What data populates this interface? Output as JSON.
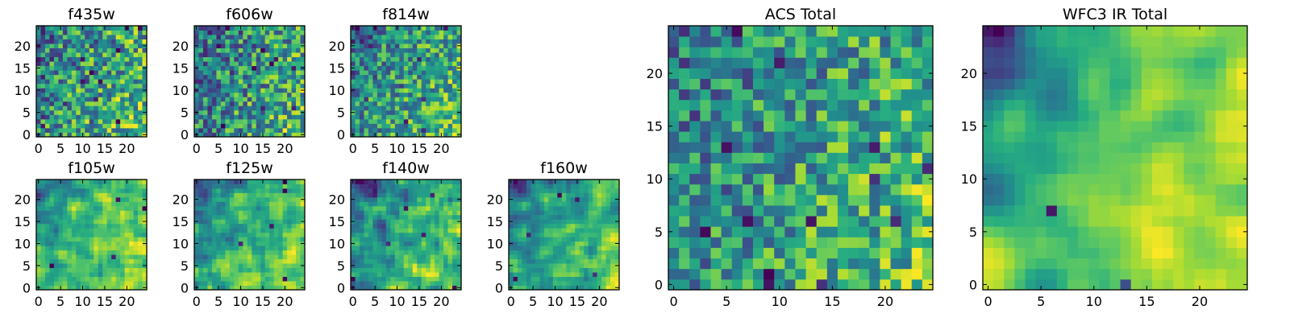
{
  "chart_data": [
    {
      "type": "heatmap",
      "title": "f435w",
      "x_ticks": [
        "0",
        "5",
        "10",
        "15",
        "20"
      ],
      "y_ticks": [
        "0",
        "5",
        "10",
        "15",
        "20"
      ],
      "grid": false,
      "legend": "none",
      "xlim": [
        -0.5,
        24.5
      ],
      "ylim": [
        -0.5,
        24.5
      ],
      "size": 25,
      "colormap": "viridis",
      "values_note": "noisy, mean ~0.75 normalized"
    },
    {
      "type": "heatmap",
      "title": "f606w",
      "x_ticks": [
        "0",
        "5",
        "10",
        "15",
        "20"
      ],
      "y_ticks": [
        "0",
        "5",
        "10",
        "15",
        "20"
      ],
      "grid": false,
      "legend": "none",
      "xlim": [
        -0.5,
        24.5
      ],
      "ylim": [
        -0.5,
        24.5
      ],
      "size": 25,
      "colormap": "viridis"
    },
    {
      "type": "heatmap",
      "title": "f814w",
      "x_ticks": [
        "0",
        "5",
        "10",
        "15",
        "20"
      ],
      "y_ticks": [
        "0",
        "5",
        "10",
        "15",
        "20"
      ],
      "grid": false,
      "legend": "none",
      "xlim": [
        -0.5,
        24.5
      ],
      "ylim": [
        -0.5,
        24.5
      ],
      "size": 25,
      "colormap": "viridis"
    },
    {
      "type": "heatmap",
      "title": "f105w",
      "x_ticks": [
        "0",
        "5",
        "10",
        "15",
        "20"
      ],
      "y_ticks": [
        "0",
        "5",
        "10",
        "15",
        "20"
      ],
      "grid": false,
      "legend": "none",
      "xlim": [
        -0.5,
        24.5
      ],
      "ylim": [
        -0.5,
        24.5
      ],
      "size": 25,
      "colormap": "viridis"
    },
    {
      "type": "heatmap",
      "title": "f125w",
      "x_ticks": [
        "0",
        "5",
        "10",
        "15",
        "20"
      ],
      "y_ticks": [
        "0",
        "5",
        "10",
        "15",
        "20"
      ],
      "grid": false,
      "legend": "none",
      "xlim": [
        -0.5,
        24.5
      ],
      "ylim": [
        -0.5,
        24.5
      ],
      "size": 25,
      "colormap": "viridis"
    },
    {
      "type": "heatmap",
      "title": "f140w",
      "x_ticks": [
        "0",
        "5",
        "10",
        "15",
        "20"
      ],
      "y_ticks": [
        "0",
        "5",
        "10",
        "15",
        "20"
      ],
      "grid": false,
      "legend": "none",
      "xlim": [
        -0.5,
        24.5
      ],
      "ylim": [
        -0.5,
        24.5
      ],
      "size": 25,
      "colormap": "viridis"
    },
    {
      "type": "heatmap",
      "title": "f160w",
      "x_ticks": [
        "0",
        "5",
        "10",
        "15",
        "20"
      ],
      "y_ticks": [
        "0",
        "5",
        "10",
        "15",
        "20"
      ],
      "grid": false,
      "legend": "none",
      "xlim": [
        -0.5,
        24.5
      ],
      "ylim": [
        -0.5,
        24.5
      ],
      "size": 25,
      "colormap": "viridis"
    },
    {
      "type": "heatmap",
      "title": "ACS Total",
      "x_ticks": [
        "0",
        "5",
        "10",
        "15",
        "20"
      ],
      "y_ticks": [
        "0",
        "5",
        "10",
        "15",
        "20"
      ],
      "grid": false,
      "legend": "none",
      "xlim": [
        -0.5,
        24.5
      ],
      "ylim": [
        -0.5,
        24.5
      ],
      "size": 25,
      "colormap": "viridis"
    },
    {
      "type": "heatmap",
      "title": "WFC3 IR Total",
      "x_ticks": [
        "0",
        "5",
        "10",
        "15",
        "20"
      ],
      "y_ticks": [
        "0",
        "5",
        "10",
        "15",
        "20"
      ],
      "grid": false,
      "legend": "none",
      "xlim": [
        -0.5,
        24.5
      ],
      "ylim": [
        -0.5,
        24.5
      ],
      "size": 25,
      "colormap": "viridis"
    }
  ]
}
